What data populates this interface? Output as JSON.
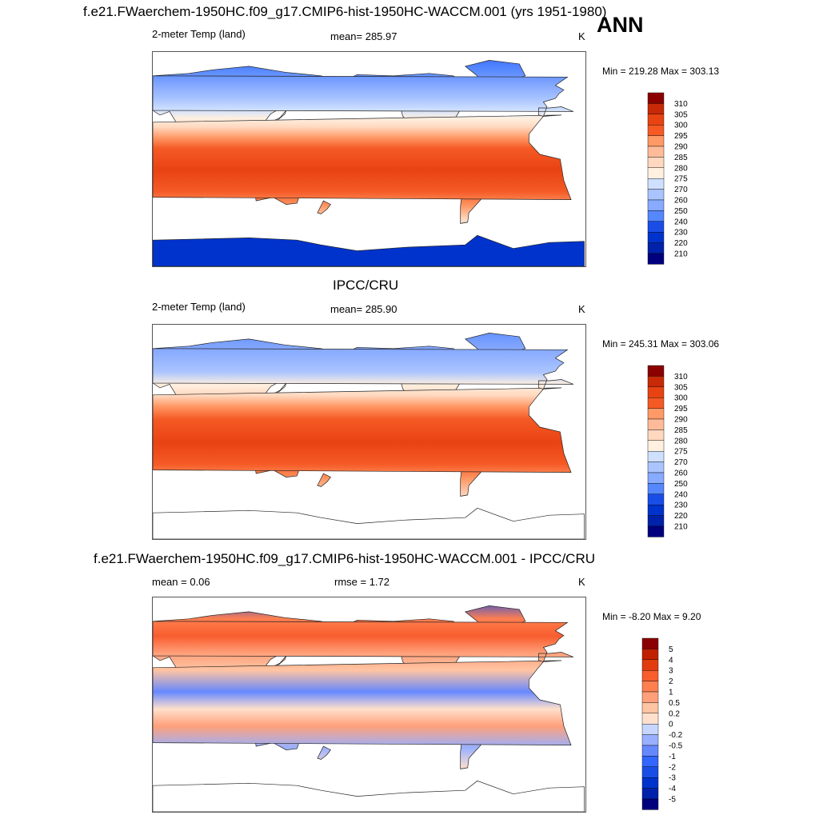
{
  "header": {
    "main_title": "f.e21.FWaerchem-1950HC.f09_g17.CMIP6-hist-1950HC-WACCM.001 (yrs 1951-1980)",
    "season": "ANN"
  },
  "palette": {
    "temperature": [
      "#00007f",
      "#0022aa",
      "#0033cc",
      "#1a4de6",
      "#3366ff",
      "#5588ff",
      "#88aaff",
      "#aac4ff",
      "#cfe0ff",
      "#fff0e0",
      "#ffd8bf",
      "#ffbb99",
      "#ff9966",
      "#ff7744",
      "#f55a25",
      "#e84312",
      "#c82a08",
      "#8b0000"
    ],
    "difference": [
      "#00007f",
      "#0022aa",
      "#0033cc",
      "#1a4de6",
      "#3366ff",
      "#6688ff",
      "#99b0ff",
      "#c7d6ff",
      "#ffffff",
      "#ffe0cc",
      "#ffc4a3",
      "#ffa07a",
      "#ff7f50",
      "#f85d2e",
      "#e03c10",
      "#c02000",
      "#8b0000"
    ]
  },
  "panels": [
    {
      "title": "",
      "left_label": "2-meter Temp (land)",
      "center_label": "mean= 285.97",
      "units": "K",
      "minmax": "Min = 219.28 Max = 303.13"
    },
    {
      "title": "IPCC/CRU",
      "left_label": "2-meter Temp (land)",
      "center_label": "mean= 285.90",
      "units": "K",
      "minmax": "Min = 245.31 Max = 303.06"
    },
    {
      "title": "f.e21.FWaerchem-1950HC.f09_g17.CMIP6-hist-1950HC-WACCM.001 - IPCC/CRU",
      "left_label": "mean =   0.06",
      "center_label": "rmse =   1.72",
      "units": "K",
      "minmax": "Min =  -8.20 Max =   9.20"
    }
  ],
  "chart_data": [
    {
      "type": "heatmap",
      "title": "2-meter Temp (land)",
      "variable": "2-meter Temp (land)",
      "units": "K",
      "mean": 285.97,
      "min": 219.28,
      "max": 303.13,
      "colorbar_levels": [
        310,
        305,
        300,
        295,
        290,
        285,
        280,
        275,
        270,
        260,
        250,
        240,
        230,
        220,
        210
      ]
    },
    {
      "type": "heatmap",
      "title": "IPCC/CRU",
      "variable": "2-meter Temp (land)",
      "units": "K",
      "mean": 285.9,
      "min": 245.31,
      "max": 303.06,
      "colorbar_levels": [
        310,
        305,
        300,
        295,
        290,
        285,
        280,
        275,
        270,
        260,
        250,
        240,
        230,
        220,
        210
      ]
    },
    {
      "type": "heatmap",
      "title": "f.e21.FWaerchem-1950HC.f09_g17.CMIP6-hist-1950HC-WACCM.001 - IPCC/CRU",
      "units": "K",
      "mean": 0.06,
      "rmse": 1.72,
      "min": -8.2,
      "max": 9.2,
      "colorbar_levels": [
        "5",
        "4",
        "3",
        "2",
        "1",
        "0.5",
        "0.2",
        "0",
        "-0.2",
        "-0.5",
        "-1",
        "-2",
        "-3",
        "-4",
        "-5"
      ]
    }
  ]
}
